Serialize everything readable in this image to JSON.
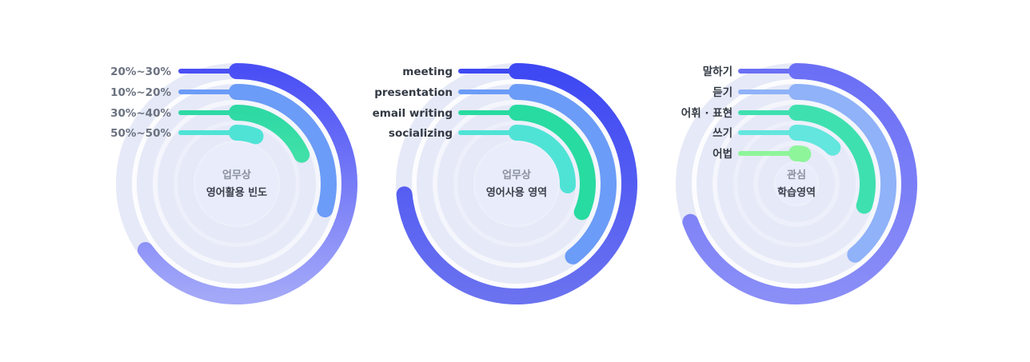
{
  "chart_data": [
    {
      "type": "radial-bar",
      "title_line1": "업무상",
      "title_line2": "영어활용 빈도",
      "series": [
        {
          "name": "20%~30%",
          "value": 0.65,
          "color": "#4a4ff5",
          "color_end": "#a3a8f8"
        },
        {
          "name": "10%~20%",
          "value": 0.295,
          "color": "#6b9cf7",
          "color_end": "#6b9cf7"
        },
        {
          "name": "30%~40%",
          "value": 0.183,
          "color": "#2ed9a4",
          "color_end": "#40e0a8"
        },
        {
          "name": "50%~50%",
          "value": 0.06,
          "color": "#4fe3d6",
          "color_end": "#4fe3d6"
        }
      ]
    },
    {
      "type": "radial-bar",
      "title_line1": "업무상",
      "title_line2": "영어사용 영역",
      "series": [
        {
          "name": "meeting",
          "value": 0.735,
          "color": "#3e48f3",
          "color_end": "#6a72f0"
        },
        {
          "name": "presentation",
          "value": 0.395,
          "color": "#6b9cf7",
          "color_end": "#6b9cf7"
        },
        {
          "name": "email writing",
          "value": 0.315,
          "color": "#28dba0",
          "color_end": "#28dba0"
        },
        {
          "name": "socializing",
          "value": 0.255,
          "color": "#4fe3d6",
          "color_end": "#4fe3d6"
        }
      ]
    },
    {
      "type": "radial-bar",
      "title_line1": "관심",
      "title_line2": "학습영역",
      "series": [
        {
          "name": "말하기",
          "value": 0.695,
          "color": "#6b6ff5",
          "color_end": "#8a8ef7"
        },
        {
          "name": "듣기",
          "value": 0.39,
          "color": "#8fb2f8",
          "color_end": "#8fb2f8"
        },
        {
          "name": "어휘 · 표현",
          "value": 0.3,
          "color": "#3fe0b0",
          "color_end": "#3fe0b0"
        },
        {
          "name": "쓰기",
          "value": 0.125,
          "color": "#62e6de",
          "color_end": "#62e6de"
        },
        {
          "name": "어법",
          "value": 0.035,
          "color": "#8ef59a",
          "color_end": "#8ef59a"
        }
      ]
    }
  ],
  "colors": {
    "track": "#e6e9f7",
    "center_fill": "#e9ecfa",
    "title_muted": "#8a90a0",
    "title_dark": "#3a3f4b"
  }
}
